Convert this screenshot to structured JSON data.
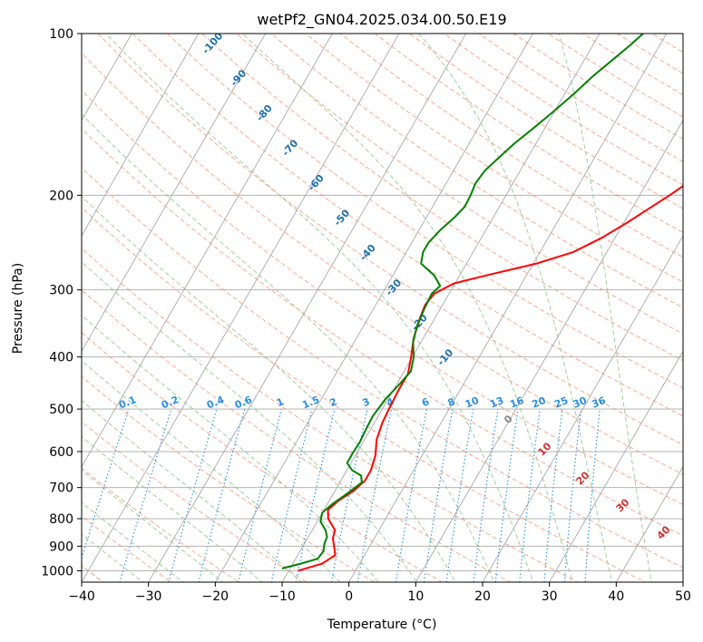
{
  "chart_data": {
    "type": "line",
    "title": "wetPf2_GN04.2025.034.00.50.E19",
    "xlabel": "Temperature (°C)",
    "ylabel": "Pressure (hPa)",
    "xlim": [
      -40,
      50
    ],
    "ylim": [
      1050,
      100
    ],
    "y_scale": "log",
    "x_ticks": [
      -40,
      -30,
      -20,
      -10,
      0,
      10,
      20,
      30,
      40,
      50
    ],
    "y_ticks": [
      100,
      200,
      300,
      400,
      500,
      600,
      700,
      800,
      900,
      1000
    ],
    "grid": true,
    "colors": {
      "temperature": "#ff0000",
      "dewpoint": "#008000",
      "isotherm": "#a9a9a9",
      "dry_adiabat": "#f8a98f",
      "moist_adiabat": "#9ed09e",
      "mixing_ratio": "#1f8fe8",
      "dry_adiabat_label": "#1f6fae",
      "mixing_ratio_label": "#2a8fe8",
      "moist_label_red": "#d03030"
    },
    "series": [
      {
        "points": [
          [
            -8.6,
            1000
          ],
          [
            -5.6,
            970
          ],
          [
            -4.4,
            935
          ],
          [
            -5.2,
            905
          ],
          [
            -6.2,
            870
          ],
          [
            -6.6,
            840
          ],
          [
            -8.6,
            800
          ],
          [
            -9.4,
            770
          ],
          [
            -8.6,
            740
          ],
          [
            -7.2,
            710
          ],
          [
            -6.4,
            680
          ],
          [
            -6.4,
            650
          ],
          [
            -7.0,
            610
          ],
          [
            -8.2,
            570
          ],
          [
            -8.8,
            530
          ],
          [
            -9.0,
            500
          ],
          [
            -9.2,
            460
          ],
          [
            -9.2,
            430
          ],
          [
            -10.2,
            400
          ],
          [
            -11.4,
            370
          ],
          [
            -12.2,
            340
          ],
          [
            -12.6,
            320
          ],
          [
            -12.2,
            305
          ],
          [
            -10.2,
            292
          ],
          [
            -6.0,
            282
          ],
          [
            0.5,
            268
          ],
          [
            5.0,
            255
          ],
          [
            8.0,
            240
          ],
          [
            10.5,
            225
          ],
          [
            12.5,
            212
          ],
          [
            14.5,
            200
          ],
          [
            16.5,
            187
          ],
          [
            19.0,
            176
          ],
          [
            22.5,
            165
          ],
          [
            27.0,
            150
          ],
          [
            30.5,
            138
          ],
          [
            33.0,
            128
          ],
          [
            36.0,
            118
          ],
          [
            39.0,
            110
          ],
          [
            41.5,
            104
          ],
          [
            43.0,
            100
          ]
        ]
      },
      {
        "points": [
          [
            -11.2,
            990
          ],
          [
            -8.8,
            970
          ],
          [
            -6.7,
            950
          ],
          [
            -6.5,
            920
          ],
          [
            -7.0,
            890
          ],
          [
            -7.2,
            865
          ],
          [
            -8.0,
            840
          ],
          [
            -9.5,
            810
          ],
          [
            -10.0,
            780
          ],
          [
            -9.2,
            750
          ],
          [
            -7.8,
            715
          ],
          [
            -6.7,
            685
          ],
          [
            -7.4,
            665
          ],
          [
            -9.2,
            650
          ],
          [
            -10.6,
            630
          ],
          [
            -10.6,
            600
          ],
          [
            -10.5,
            575
          ],
          [
            -10.7,
            545
          ],
          [
            -10.8,
            515
          ],
          [
            -10.4,
            480
          ],
          [
            -9.6,
            450
          ],
          [
            -9.0,
            425
          ],
          [
            -9.8,
            400
          ],
          [
            -11.2,
            375
          ],
          [
            -12.0,
            350
          ],
          [
            -12.4,
            325
          ],
          [
            -12.6,
            305
          ],
          [
            -12.0,
            295
          ],
          [
            -13.8,
            282
          ],
          [
            -16.8,
            268
          ],
          [
            -17.5,
            255
          ],
          [
            -17.5,
            245
          ],
          [
            -16.8,
            232
          ],
          [
            -15.8,
            220
          ],
          [
            -15.2,
            210
          ],
          [
            -15.3,
            200
          ],
          [
            -15.6,
            190
          ],
          [
            -15.3,
            180
          ],
          [
            -14.3,
            170
          ],
          [
            -13.2,
            160
          ],
          [
            -11.7,
            150
          ],
          [
            -10.2,
            140
          ],
          [
            -8.7,
            130
          ],
          [
            -7.3,
            120
          ],
          [
            -5.8,
            112
          ],
          [
            -4.4,
            105
          ],
          [
            -3.5,
            100
          ]
        ]
      }
    ],
    "dry_adiabat_labels": [
      "-100",
      "-90",
      "-80",
      "-70",
      "-60",
      "-50",
      "-40",
      "-30",
      "-20",
      "-10"
    ],
    "mixing_ratio_labels": [
      "0.1",
      "0.2",
      "0.4",
      "0.6",
      "1",
      "1.5",
      "2",
      "3",
      "4",
      "6",
      "8",
      "10",
      "13",
      "16",
      "20",
      "25",
      "30",
      "36"
    ],
    "moist_adiabat_labels": [
      "0",
      "10",
      "20",
      "30",
      "40"
    ]
  }
}
